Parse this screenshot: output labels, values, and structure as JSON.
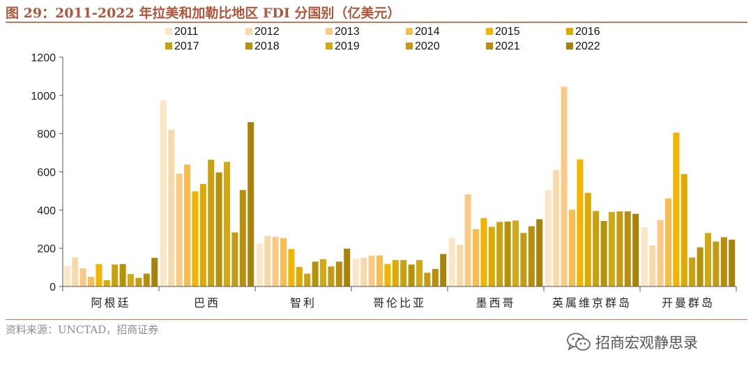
{
  "title": "图 29：2011-2022 年拉美和加勒比地区 FDI 分国别（亿美元）",
  "source": "资料来源：UNCTAD，招商证券",
  "watermark": {
    "text": "招商宏观静思录",
    "icon": "wechat-icon"
  },
  "chart_data": {
    "type": "bar",
    "categories": [
      "阿根廷",
      "巴西",
      "智利",
      "哥伦比亚",
      "墨西哥",
      "英属维京群岛",
      "开曼群岛"
    ],
    "ylim": [
      0,
      1200
    ],
    "yticks": [
      "0",
      "200",
      "400",
      "600",
      "800",
      "1000",
      "1200"
    ],
    "grid": false,
    "legend_position": "top",
    "series": [
      {
        "name": "2011",
        "color": "#fbe6c8",
        "values": [
          108,
          975,
          225,
          145,
          255,
          505,
          310
        ]
      },
      {
        "name": "2012",
        "color": "#fad9a8",
        "values": [
          152,
          820,
          265,
          150,
          218,
          610,
          215
        ]
      },
      {
        "name": "2013",
        "color": "#f8ca86",
        "values": [
          95,
          590,
          260,
          162,
          482,
          1045,
          348
        ]
      },
      {
        "name": "2014",
        "color": "#f6bd50",
        "values": [
          50,
          638,
          253,
          162,
          300,
          402,
          460
        ]
      },
      {
        "name": "2015",
        "color": "#f2b400",
        "values": [
          117,
          498,
          196,
          118,
          358,
          665,
          805
        ]
      },
      {
        "name": "2016",
        "color": "#deaa00",
        "values": [
          33,
          536,
          102,
          138,
          312,
          490,
          588
        ]
      },
      {
        "name": "2017",
        "color": "#c9a010",
        "values": [
          115,
          663,
          67,
          138,
          338,
          395,
          152
        ]
      },
      {
        "name": "2018",
        "color": "#b5920a",
        "values": [
          117,
          597,
          130,
          115,
          340,
          343,
          205
        ]
      },
      {
        "name": "2019",
        "color": "#d4a814",
        "values": [
          65,
          652,
          143,
          138,
          345,
          390,
          280
        ]
      },
      {
        "name": "2020",
        "color": "#c59a14",
        "values": [
          45,
          283,
          105,
          72,
          280,
          393,
          235
        ]
      },
      {
        "name": "2021",
        "color": "#b88e0c",
        "values": [
          67,
          505,
          130,
          92,
          315,
          393,
          258
        ]
      },
      {
        "name": "2022",
        "color": "#a8830a",
        "values": [
          150,
          860,
          198,
          170,
          352,
          380,
          245
        ]
      }
    ]
  }
}
